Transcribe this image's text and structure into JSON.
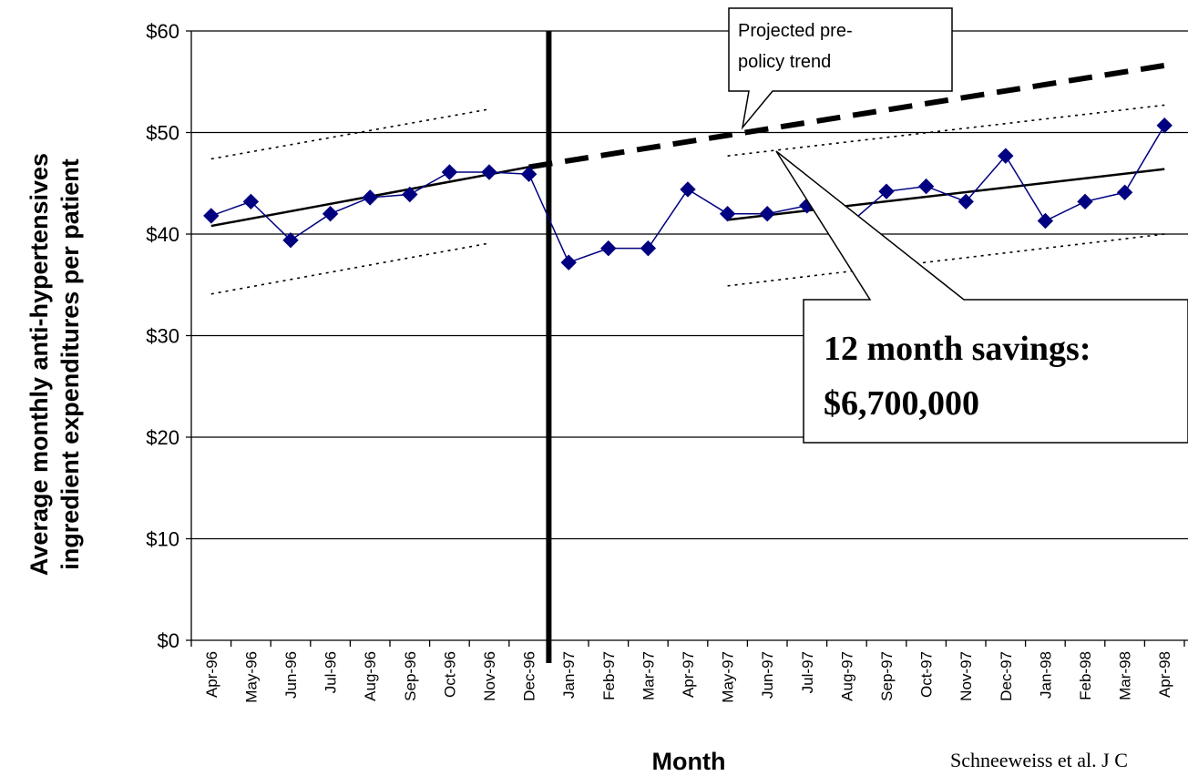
{
  "chart_data": {
    "type": "line",
    "ylabel_lines": [
      "Average monthly anti-hypertensives",
      "ingredient expenditures per patient"
    ],
    "xlabel": "Month",
    "ylim": [
      0,
      60
    ],
    "y_ticks": [
      "$0",
      "$10",
      "$20",
      "$30",
      "$40",
      "$50",
      "$60"
    ],
    "y_tick_values": [
      0,
      10,
      20,
      30,
      40,
      50,
      60
    ],
    "categories": [
      "Apr-96",
      "May-96",
      "Jun-96",
      "Jul-96",
      "Aug-96",
      "Sep-96",
      "Oct-96",
      "Nov-96",
      "Dec-96",
      "Jan-97",
      "Feb-97",
      "Mar-97",
      "Apr-97",
      "May-97",
      "Jun-97",
      "Jul-97",
      "Aug-97",
      "Sep-97",
      "Oct-97",
      "Nov-97",
      "Dec-97",
      "Jan-98",
      "Feb-98",
      "Mar-98",
      "Apr-98"
    ],
    "series": [
      {
        "values": [
          41.8,
          43.2,
          39.4,
          42.0,
          43.6,
          43.9,
          46.1,
          46.1,
          45.9,
          37.2,
          38.6,
          38.6,
          44.4,
          42.0,
          42.0,
          42.8,
          40.8,
          44.2,
          44.7,
          43.2,
          47.7,
          41.3,
          43.2,
          44.1,
          50.7
        ],
        "color": "#000080",
        "marker": "diamond"
      }
    ],
    "policy_change_between": [
      "Dec-96",
      "Jan-97"
    ],
    "pre_trend": {
      "from": "Apr-96",
      "to": "Dec-96",
      "values": [
        40.8,
        46.6
      ]
    },
    "pre_ci_upper": {
      "from": "Apr-96",
      "to": "Nov-96",
      "values": [
        47.4,
        52.3
      ]
    },
    "pre_ci_lower": {
      "from": "Apr-96",
      "to": "Nov-96",
      "values": [
        34.1,
        39.1
      ]
    },
    "projected_trend": {
      "from": "Dec-96",
      "to": "Apr-98",
      "values": [
        46.6,
        56.6
      ]
    },
    "post_trend": {
      "from": "May-97",
      "to": "Apr-98",
      "values": [
        41.4,
        46.4
      ]
    },
    "post_ci_upper": {
      "from": "May-97",
      "to": "Apr-98",
      "values": [
        47.7,
        52.7
      ]
    },
    "post_ci_lower": {
      "from": "May-97",
      "to": "Apr-98",
      "values": [
        34.9,
        40.0
      ]
    },
    "annotations": {
      "projected_label_lines": [
        "Projected pre-",
        "policy trend"
      ],
      "savings_lines": [
        "12 month savings:",
        "$6,700,000"
      ]
    },
    "source_text": "Schneeweiss et al. J C",
    "grid": true
  }
}
